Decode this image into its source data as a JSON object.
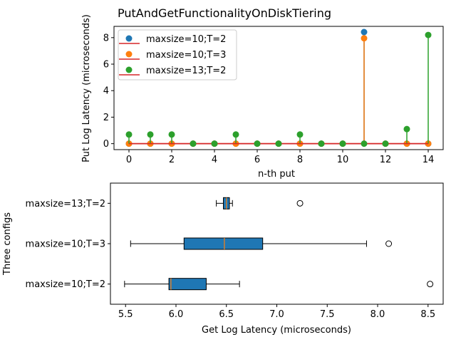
{
  "colors": {
    "blue": "#1f77b4",
    "orange": "#ff7f0e",
    "green": "#2ca02c",
    "baseline": "#d62728",
    "box_fill": "#1f77b4",
    "median": "#ff7f0e"
  },
  "chart_data": [
    {
      "type": "scatter",
      "subtype": "stem",
      "title": "PutAndGetFunctionalityOnDiskTiering",
      "xlabel": "n-th put",
      "ylabel": "Put Log Latency (microseconds)",
      "xlim": [
        -0.7,
        14.7
      ],
      "ylim": [
        -0.45,
        8.85
      ],
      "xticks": [
        "0",
        "2",
        "4",
        "6",
        "8",
        "10",
        "12",
        "14"
      ],
      "yticks": [
        "0",
        "2",
        "4",
        "6",
        "8"
      ],
      "legend_position": "upper-left",
      "grid": false,
      "series": [
        {
          "name": "maxsize=10;T=2",
          "color": "#1f77b4",
          "x": [
            0,
            1,
            2,
            3,
            4,
            5,
            6,
            7,
            8,
            9,
            10,
            11,
            12,
            13,
            14
          ],
          "y": [
            0,
            0,
            0,
            0,
            0,
            0,
            0,
            0,
            0,
            0,
            0,
            8.42,
            0,
            0,
            0
          ]
        },
        {
          "name": "maxsize=10;T=3",
          "color": "#ff7f0e",
          "x": [
            0,
            1,
            2,
            3,
            4,
            5,
            6,
            7,
            8,
            9,
            10,
            11,
            12,
            13,
            14
          ],
          "y": [
            0,
            0,
            0,
            0,
            0,
            0,
            0,
            0,
            0,
            0,
            0,
            7.95,
            0,
            0,
            0
          ]
        },
        {
          "name": "maxsize=13;T=2",
          "color": "#2ca02c",
          "x": [
            0,
            1,
            2,
            3,
            4,
            5,
            6,
            7,
            8,
            9,
            10,
            11,
            12,
            13,
            14
          ],
          "y": [
            0.69,
            0.69,
            0.69,
            0,
            0,
            0.69,
            0,
            0,
            0.69,
            0,
            0,
            0,
            0,
            1.1,
            8.2
          ]
        }
      ]
    },
    {
      "type": "box",
      "xlabel": "Get Log Latency (microseconds)",
      "ylabel": "Three configs",
      "xlim": [
        5.35,
        8.65
      ],
      "xticks": [
        "5.5",
        "6.0",
        "6.5",
        "7.0",
        "7.5",
        "8.0",
        "8.5"
      ],
      "grid": false,
      "categories": [
        "maxsize=10;T=2",
        "maxsize=10;T=3",
        "maxsize=13;T=2"
      ],
      "boxes": [
        {
          "name": "maxsize=10;T=2",
          "whisker_low": 5.49,
          "q1": 5.93,
          "median": 5.95,
          "q3": 6.3,
          "whisker_high": 6.63,
          "outliers": [
            8.52
          ]
        },
        {
          "name": "maxsize=10;T=3",
          "whisker_low": 5.55,
          "q1": 6.08,
          "median": 6.48,
          "q3": 6.86,
          "whisker_high": 7.89,
          "outliers": [
            8.11
          ]
        },
        {
          "name": "maxsize=13;T=2",
          "whisker_low": 6.4,
          "q1": 6.47,
          "median": 6.5,
          "q3": 6.53,
          "whisker_high": 6.56,
          "outliers": [
            7.23
          ]
        }
      ]
    }
  ]
}
